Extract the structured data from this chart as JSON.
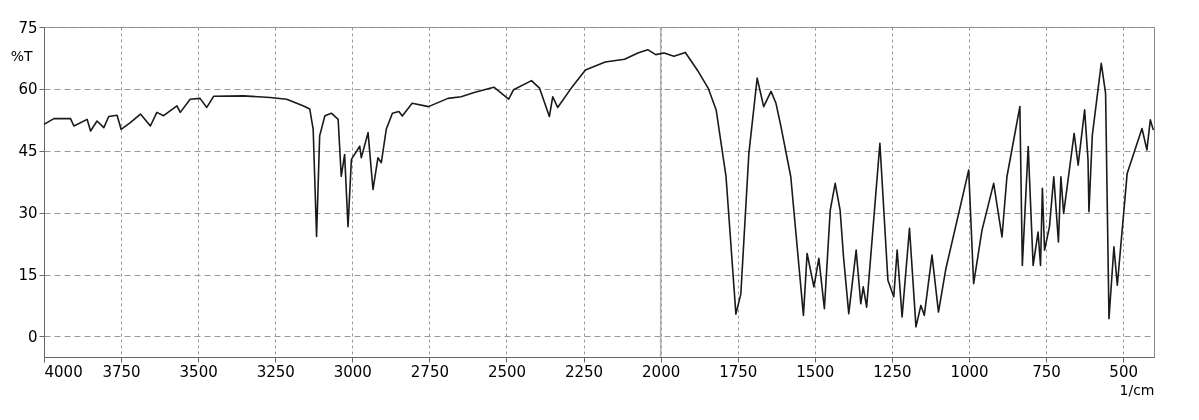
{
  "chart_data": {
    "type": "line",
    "xlabel": "1/cm",
    "ylabel": "%T",
    "xlim": [
      4000,
      400
    ],
    "ylim": [
      -5,
      75
    ],
    "xticks": [
      4000,
      3750,
      3500,
      3250,
      3000,
      2750,
      2500,
      2250,
      2000,
      1750,
      1500,
      1250,
      1000,
      750,
      500
    ],
    "yticks": [
      0,
      15,
      30,
      45,
      60,
      75
    ],
    "grid": true,
    "line_style": "solid",
    "marker": "none",
    "ref_lines": [
      {
        "axis": "x",
        "value": 2000,
        "color": "#b0b0b0",
        "line_style": "solid"
      }
    ],
    "series": [
      {
        "color": "#1a1a1a",
        "x": [
          4000,
          3968,
          3914,
          3903,
          3860,
          3849,
          3828,
          3806,
          3790,
          3763,
          3750,
          3720,
          3687,
          3655,
          3634,
          3612,
          3569,
          3558,
          3526,
          3494,
          3472,
          3450,
          3353,
          3267,
          3213,
          3160,
          3138,
          3127,
          3116,
          3106,
          3089,
          3068,
          3046,
          3036,
          3025,
          3014,
          3003,
          2976,
          2971,
          2949,
          2933,
          2917,
          2906,
          2890,
          2870,
          2849,
          2838,
          2806,
          2753,
          2690,
          2647,
          2605,
          2541,
          2493,
          2477,
          2419,
          2393,
          2361,
          2350,
          2334,
          2286,
          2244,
          2180,
          2117,
          2074,
          2042,
          2016,
          1989,
          1957,
          1920,
          1878,
          1846,
          1820,
          1788,
          1756,
          1740,
          1714,
          1687,
          1666,
          1642,
          1626,
          1610,
          1578,
          1537,
          1525,
          1503,
          1487,
          1469,
          1450,
          1434,
          1418,
          1407,
          1390,
          1366,
          1351,
          1343,
          1332,
          1289,
          1263,
          1244,
          1233,
          1217,
          1193,
          1172,
          1156,
          1145,
          1120,
          1099,
          1075,
          1001,
          985,
          968,
          958,
          920,
          893,
          877,
          835,
          827,
          808,
          792,
          776,
          768,
          762,
          755,
          739,
          725,
          710,
          702,
          693,
          659,
          646,
          625,
          614,
          611,
          600,
          571,
          557,
          546,
          530,
          519,
          487,
          439,
          423,
          412,
          402
        ],
        "values": [
          51.4,
          52.8,
          52.8,
          51,
          52.6,
          49.8,
          52.2,
          50.6,
          53.3,
          53.6,
          50.2,
          51.8,
          53.9,
          51,
          54.3,
          53.5,
          55.9,
          54.3,
          57.5,
          57.7,
          55.5,
          58.2,
          58.3,
          57.9,
          57.5,
          55.9,
          55.1,
          50.2,
          24.2,
          48.6,
          53.5,
          54.1,
          52.6,
          38.8,
          44.1,
          26.6,
          42.9,
          46.1,
          43.3,
          49.4,
          35.6,
          43.3,
          42.1,
          50.2,
          54.1,
          54.5,
          53.4,
          56.5,
          55.7,
          57.7,
          58.1,
          59.1,
          60.4,
          57.5,
          59.8,
          62.0,
          60.2,
          53.3,
          58.1,
          55.5,
          60.6,
          64.6,
          66.5,
          67.2,
          68.7,
          69.5,
          68.3,
          68.7,
          67.9,
          68.8,
          64.2,
          60.2,
          54.9,
          38.7,
          5.4,
          10.3,
          44.3,
          62.6,
          55.7,
          59.4,
          56.5,
          50.9,
          38.7,
          5.1,
          20.1,
          12.0,
          18.9,
          6.7,
          30.6,
          37.1,
          30.6,
          19.3,
          5.5,
          20.9,
          7.9,
          12.0,
          7.1,
          46.8,
          13.6,
          9.6,
          20.9,
          4.7,
          26.2,
          2.3,
          7.5,
          5.1,
          19.7,
          5.9,
          16.4,
          40.3,
          12.8,
          20.9,
          25.7,
          37.1,
          24.1,
          38.7,
          55.7,
          17.2,
          46.0,
          17.2,
          25.3,
          17.2,
          35.9,
          20.9,
          26.6,
          38.7,
          22.9,
          38.7,
          29.8,
          49.2,
          41.5,
          54.9,
          42.8,
          30.2,
          48.8,
          66.2,
          58.9,
          4.3,
          21.7,
          12.4,
          39.5,
          50.4,
          45.2,
          52.5,
          50.0
        ]
      }
    ]
  }
}
